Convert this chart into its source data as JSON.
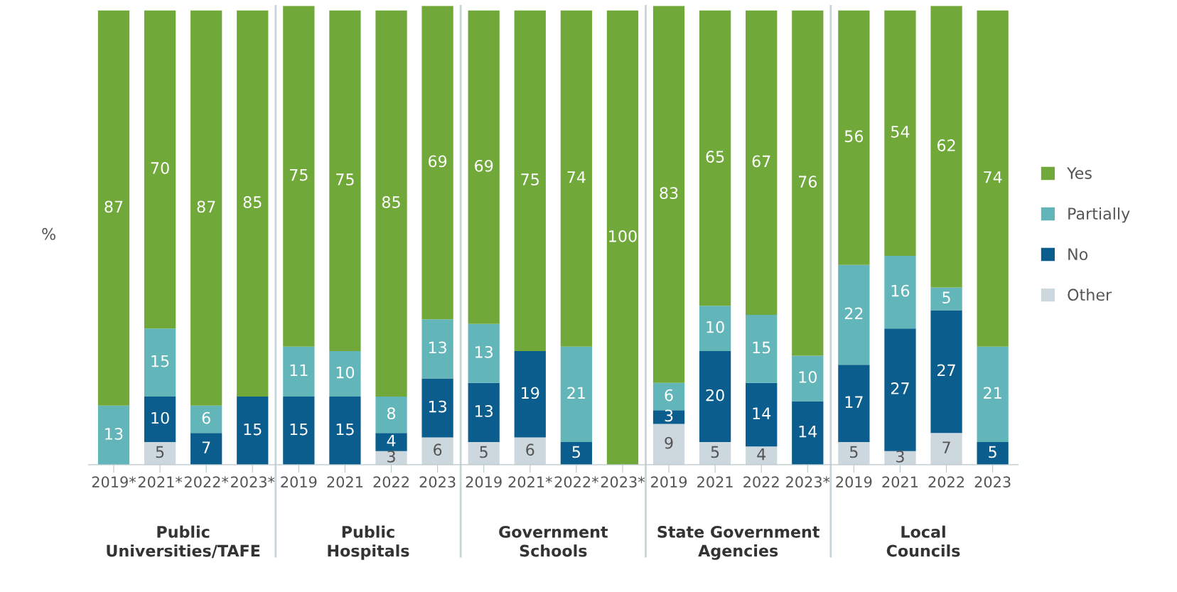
{
  "chart_data": {
    "type": "bar",
    "stacked": true,
    "data_labels": true,
    "legend": "right",
    "grid": false,
    "ylabel": "%",
    "categories": [
      "2019*",
      "2021*",
      "2022*",
      "2023*",
      "2019",
      "2021",
      "2022",
      "2023",
      "2019",
      "2021*",
      "2022*",
      "2023*",
      "2019",
      "2021",
      "2022",
      "2023*",
      "2019",
      "2021",
      "2022",
      "2023"
    ],
    "annotations": [
      "Public Universities/TAFE",
      "Public Hospitals",
      "Government Schools",
      "State Government Agencies",
      "Local Councils"
    ],
    "series": [
      {
        "name": "Other",
        "color": "#cdd8de",
        "values": [
          null,
          5,
          null,
          null,
          null,
          null,
          3,
          6,
          5,
          6,
          null,
          null,
          9,
          5,
          4,
          null,
          5,
          3,
          7,
          null
        ]
      },
      {
        "name": "No",
        "color": "#0a5d8c",
        "values": [
          null,
          10,
          7,
          15,
          15,
          15,
          4,
          13,
          13,
          19,
          5,
          null,
          3,
          20,
          14,
          14,
          17,
          27,
          27,
          5
        ]
      },
      {
        "name": "Partially",
        "color": "#62b5b9",
        "values": [
          13,
          15,
          6,
          null,
          11,
          10,
          8,
          13,
          13,
          null,
          21,
          null,
          6,
          10,
          15,
          10,
          22,
          16,
          5,
          21
        ]
      },
      {
        "name": "Yes",
        "color": "#70a83a",
        "values": [
          87,
          70,
          87,
          85,
          75,
          75,
          85,
          69,
          69,
          75,
          74,
          100,
          83,
          65,
          67,
          76,
          56,
          54,
          62,
          74
        ]
      }
    ]
  }
}
